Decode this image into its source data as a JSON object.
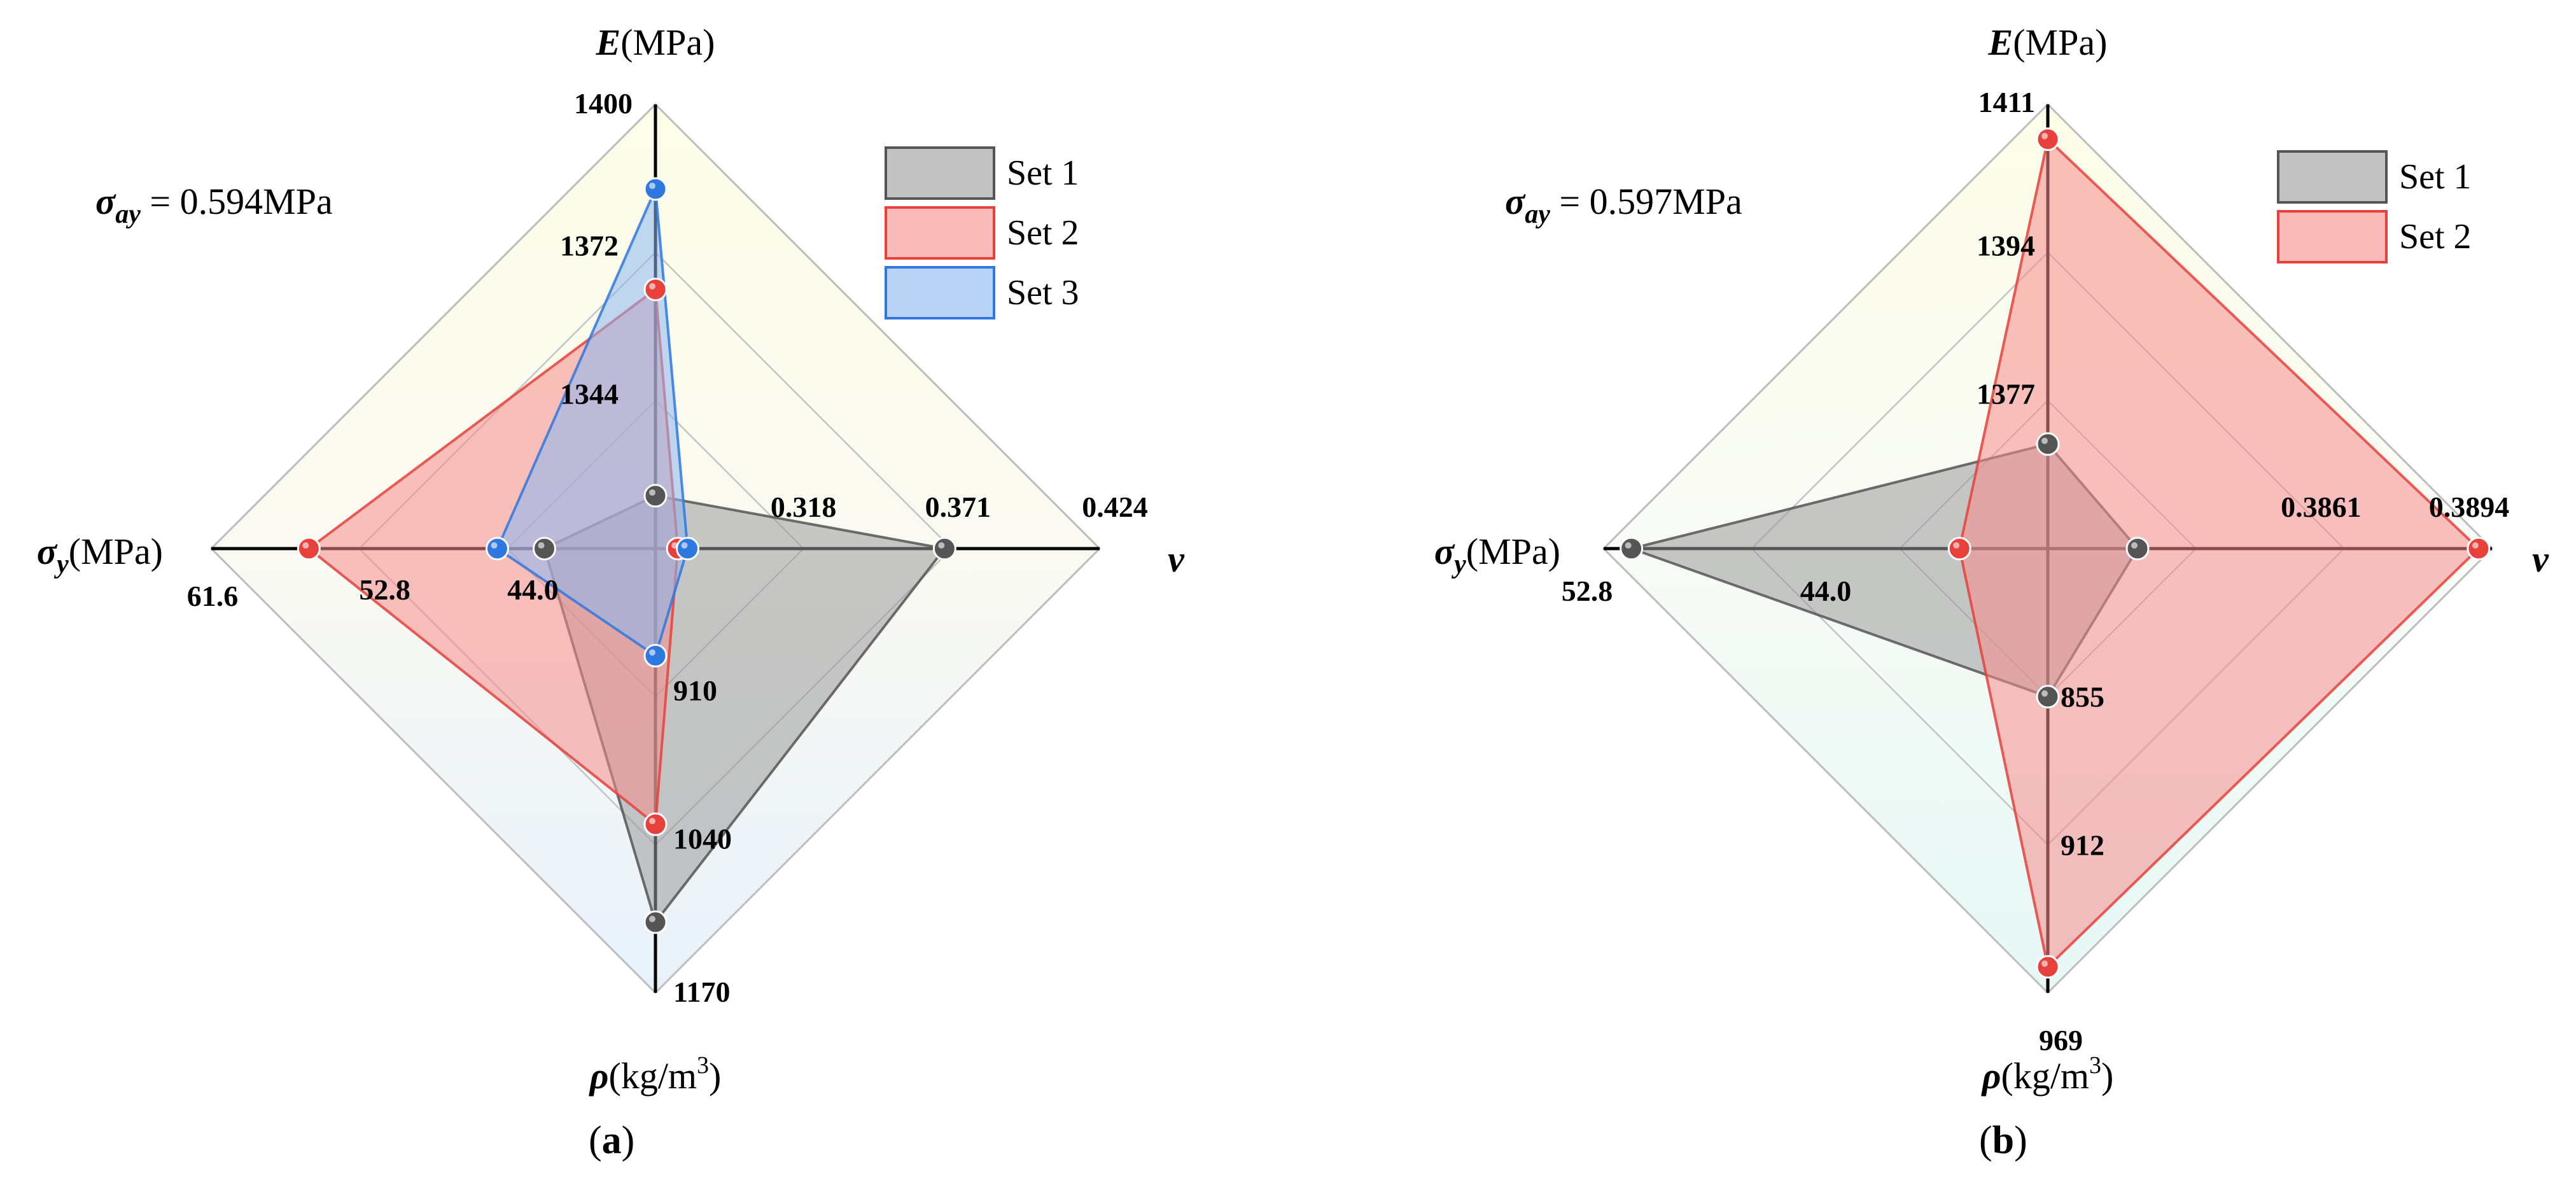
{
  "chart_data": [
    {
      "type": "radar",
      "caption": "(a)",
      "caption_bold": "a",
      "annotation": {
        "symbol": "σ",
        "subscript": "ay",
        "text": " = 0.594MPa"
      },
      "axes": [
        {
          "key": "E",
          "symbol": "E",
          "unit": "(MPa)",
          "direction": "up",
          "ticks": [
            {
              "label": "1344",
              "value": 1344
            },
            {
              "label": "1372",
              "value": 1372
            },
            {
              "label": "1400",
              "value": 1400
            }
          ],
          "range": [
            1316,
            1400
          ]
        },
        {
          "key": "v",
          "symbol": "v",
          "unit": "",
          "direction": "right",
          "ticks": [
            {
              "label": "0.318",
              "value": 0.318
            },
            {
              "label": "0.371",
              "value": 0.371
            },
            {
              "label": "0.424",
              "value": 0.424
            }
          ],
          "range": [
            0.265,
            0.424
          ]
        },
        {
          "key": "rho",
          "symbol": "ρ",
          "unit": "(kg/m",
          "unit_sup": "3",
          "unit_tail": ")",
          "direction": "down",
          "ticks": [
            {
              "label": "910",
              "value": 910
            },
            {
              "label": "1040",
              "value": 1040
            },
            {
              "label": "1170",
              "value": 1170
            }
          ],
          "range": [
            780,
            1170
          ]
        },
        {
          "key": "sy",
          "symbol": "σ",
          "subscript": "y",
          "unit": "(MPa)",
          "direction": "left",
          "ticks": [
            {
              "label": "44.0",
              "value": 44.0
            },
            {
              "label": "52.8",
              "value": 52.8
            },
            {
              "label": "61.6",
              "value": 61.6
            }
          ],
          "range": [
            35.2,
            61.6
          ]
        }
      ],
      "series": [
        {
          "name": "Set 1",
          "color": "#555555",
          "fill": "#9a9a9a",
          "values": {
            "E": 1326,
            "v": 0.3685,
            "rho": 1108,
            "sy": 41.8
          }
        },
        {
          "name": "Set 2",
          "color": "#e8413c",
          "fill": "#f58c8c",
          "values": {
            "E": 1365,
            "v": 0.273,
            "rho": 1022,
            "sy": 55.8
          }
        },
        {
          "name": "Set 3",
          "color": "#2f78e0",
          "fill": "#8ab6f1",
          "values": {
            "E": 1384,
            "v": 0.2765,
            "rho": 874,
            "sy": 44.6
          }
        }
      ]
    },
    {
      "type": "radar",
      "caption": "(b)",
      "caption_bold": "b",
      "annotation": {
        "symbol": "σ",
        "subscript": "ay",
        "text": " = 0.597MPa"
      },
      "axes": [
        {
          "key": "E",
          "symbol": "E",
          "unit": "(MPa)",
          "direction": "up",
          "ticks": [
            {
              "label": "1377",
              "value": 1377
            },
            {
              "label": "1394",
              "value": 1394
            },
            {
              "label": "1411",
              "value": 1411
            }
          ],
          "range": [
            1360,
            1411
          ]
        },
        {
          "key": "v",
          "symbol": "v",
          "unit": "",
          "direction": "right",
          "ticks": [
            {
              "label": "0.3861",
              "value": 0.3861
            },
            {
              "label": "0.3894",
              "value": 0.3894
            }
          ],
          "range": [
            0.3795,
            0.3894
          ]
        },
        {
          "key": "rho",
          "symbol": "ρ",
          "unit": "(kg/m",
          "unit_sup": "3",
          "unit_tail": ")",
          "direction": "down",
          "ticks": [
            {
              "label": "855",
              "value": 855
            },
            {
              "label": "912",
              "value": 912
            },
            {
              "label": "969",
              "value": 969
            }
          ],
          "range": [
            798,
            969
          ]
        },
        {
          "key": "sy",
          "symbol": "σ",
          "subscript": "y",
          "unit": "(MPa)",
          "direction": "left",
          "ticks": [
            {
              "label": "44.0",
              "value": 44.0
            },
            {
              "label": "52.8",
              "value": 52.8
            }
          ],
          "range": [
            35.2,
            52.8
          ]
        }
      ],
      "series": [
        {
          "name": "Set 1",
          "color": "#555555",
          "fill": "#9a9a9a",
          "values": {
            "E": 1372,
            "v": 0.3815,
            "rho": 855,
            "sy": 51.7
          }
        },
        {
          "name": "Set 2",
          "color": "#e8413c",
          "fill": "#f58c8c",
          "values": {
            "E": 1407,
            "v": 0.3891,
            "rho": 959,
            "sy": 38.7
          }
        }
      ]
    }
  ]
}
